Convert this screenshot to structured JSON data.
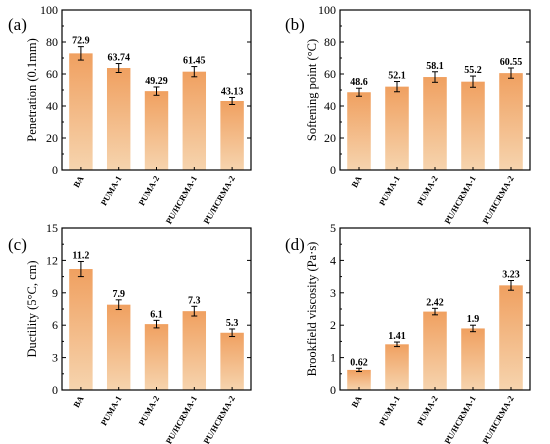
{
  "colors": {
    "bar_top": "#f0a060",
    "bar_bottom": "#f6d4ae"
  },
  "chart_data": [
    {
      "type": "bar",
      "panel_label": "(a)",
      "ylabel": "Penetration (0.1mm)",
      "ylim": [
        0,
        100
      ],
      "yticks": [
        0,
        20,
        40,
        60,
        80,
        100
      ],
      "ytick_labels": [
        "0",
        "20",
        "40",
        "60",
        "80",
        "100"
      ],
      "categories": [
        "BA",
        "PUMA-1",
        "PUMA-2",
        "PU/HCRMA-1",
        "PU/HCRMA-2"
      ],
      "values": [
        72.9,
        63.74,
        49.29,
        61.45,
        43.13
      ],
      "value_labels": [
        "72.9",
        "63.74",
        "49.29",
        "61.45",
        "43.13"
      ],
      "errors": [
        4.2,
        2.8,
        2.6,
        3.2,
        2.2
      ]
    },
    {
      "type": "bar",
      "panel_label": "(b)",
      "ylabel": "Softening point (°C)",
      "ylim": [
        0,
        100
      ],
      "yticks": [
        0,
        20,
        40,
        60,
        80,
        100
      ],
      "ytick_labels": [
        "0",
        "20",
        "40",
        "60",
        "80",
        "100"
      ],
      "categories": [
        "BA",
        "PUMA-1",
        "PUMA-2",
        "PU/HCRMA-1",
        "PU/HCRMA-2"
      ],
      "values": [
        48.6,
        52.1,
        58.1,
        55.2,
        60.55
      ],
      "value_labels": [
        "48.6",
        "52.1",
        "58.1",
        "55.2",
        "60.55"
      ],
      "errors": [
        2.5,
        3.2,
        3.3,
        3.5,
        3.2
      ]
    },
    {
      "type": "bar",
      "panel_label": "(c)",
      "ylabel": "Ductility (5°C, cm)",
      "ylim": [
        0,
        15
      ],
      "yticks": [
        0,
        3,
        6,
        9,
        12,
        15
      ],
      "ytick_labels": [
        "0",
        "3",
        "6",
        "9",
        "12",
        "15"
      ],
      "categories": [
        "BA",
        "PUMA-1",
        "PUMA-2",
        "PU/HCRMA-1",
        "PU/HCRMA-2"
      ],
      "values": [
        11.2,
        7.9,
        6.1,
        7.3,
        5.3
      ],
      "value_labels": [
        "11.2",
        "7.9",
        "6.1",
        "7.3",
        "5.3"
      ],
      "errors": [
        0.7,
        0.45,
        0.35,
        0.45,
        0.35
      ]
    },
    {
      "type": "bar",
      "panel_label": "(d)",
      "ylabel": "Brookfield viscosity (Pa·s)",
      "ylim": [
        0,
        5
      ],
      "yticks": [
        0,
        1,
        2,
        3,
        4,
        5
      ],
      "ytick_labels": [
        "0",
        "1",
        "2",
        "3",
        "4",
        "5"
      ],
      "categories": [
        "BA",
        "PUMA-1",
        "PUMA-2",
        "PU/HCRMA-1",
        "PU/HCRMA-2"
      ],
      "values": [
        0.62,
        1.41,
        2.42,
        1.9,
        3.23
      ],
      "value_labels": [
        "0.62",
        "1.41",
        "2.42",
        "1.9",
        "3.23"
      ],
      "errors": [
        0.05,
        0.07,
        0.1,
        0.1,
        0.15
      ]
    }
  ]
}
